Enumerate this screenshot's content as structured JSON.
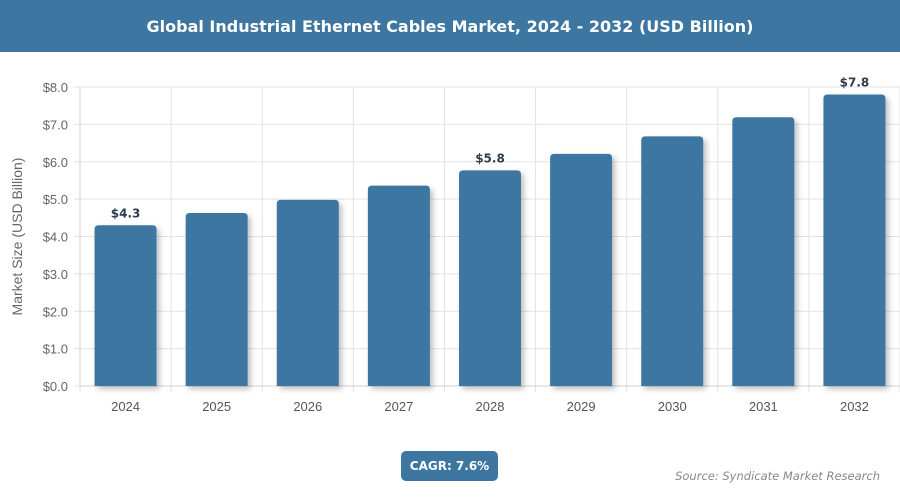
{
  "header": {
    "title": "Global Industrial Ethernet Cables Market, 2024 - 2032 (USD Billion)"
  },
  "chart_data": {
    "type": "bar",
    "title": "Global Industrial Ethernet Cables Market, 2024 - 2032 (USD Billion)",
    "xlabel": "",
    "ylabel": "Market Size (USD Billion)",
    "categories": [
      "2024",
      "2025",
      "2026",
      "2027",
      "2028",
      "2029",
      "2030",
      "2031",
      "2032"
    ],
    "values": [
      4.3,
      4.63,
      4.98,
      5.36,
      5.77,
      6.21,
      6.68,
      7.19,
      7.8
    ],
    "data_labels": {
      "0": "$4.3",
      "4": "$5.8",
      "8": "$7.8"
    },
    "ylim": [
      0,
      8
    ],
    "yticks": [
      "$0.0",
      "$1.0",
      "$2.0",
      "$3.0",
      "$4.0",
      "$5.0",
      "$6.0",
      "$7.0",
      "$8.0"
    ],
    "grid": true,
    "bar_color": "#3d76a0"
  },
  "footer": {
    "cagr": "CAGR: 7.6%",
    "source": "Source: Syndicate Market Research"
  }
}
